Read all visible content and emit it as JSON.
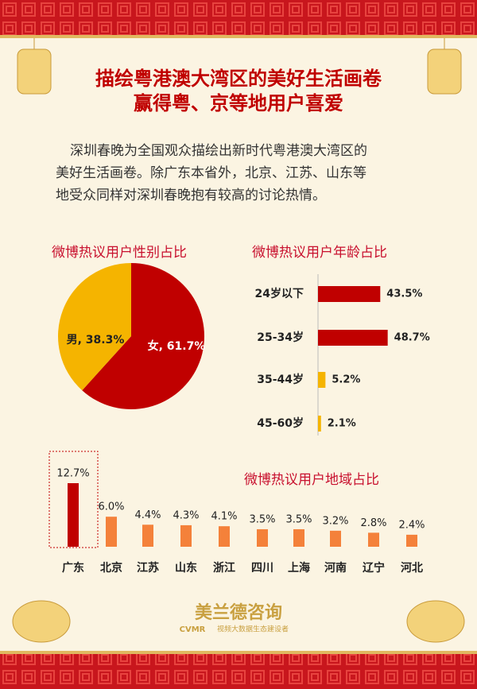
{
  "header": {
    "title_lines": [
      "描绘粤港澳大湾区的美好生活画卷",
      "赢得粤、京等地用户喜爱"
    ],
    "paragraph_lines": [
      "深圳春晚为全国观众描绘出新时代粤港澳大湾区的",
      "美好生活画卷。除广东本省外，北京、江苏、山东等",
      "地受众同样对深圳春晚抱有较高的讨论热情。"
    ]
  },
  "chart_data": [
    {
      "type": "pie",
      "title": "微博热议用户性别占比",
      "values": [
        61.7,
        38.3
      ],
      "value_labels": [
        "女, 61.7%",
        "男, 38.3%"
      ],
      "colors": [
        "#c00000",
        "#f5b400"
      ]
    },
    {
      "type": "hbar",
      "title": "微博热议用户年龄占比",
      "categories": [
        "24岁以下",
        "25-34岁",
        "35-44岁",
        "45-60岁"
      ],
      "values": [
        43.5,
        48.7,
        5.2,
        2.1
      ],
      "value_labels": [
        "43.5%",
        "48.7%",
        "5.2%",
        "2.1%"
      ],
      "colors": [
        "#c00000",
        "#c00000",
        "#f5b400",
        "#f5b400"
      ]
    },
    {
      "type": "bar",
      "title": "微博热议用户地域占比",
      "categories": [
        "广东",
        "北京",
        "江苏",
        "山东",
        "浙江",
        "四川",
        "上海",
        "河南",
        "辽宁",
        "河北"
      ],
      "values": [
        12.7,
        6.0,
        4.4,
        4.3,
        4.1,
        3.5,
        3.5,
        3.2,
        2.8,
        2.4
      ],
      "value_labels": [
        "12.7%",
        "6.0%",
        "4.4%",
        "4.3%",
        "4.1%",
        "3.5%",
        "3.5%",
        "3.2%",
        "2.8%",
        "2.4%"
      ],
      "colors": [
        "#c00000",
        "#f4813a",
        "#f4813a",
        "#f4813a",
        "#f4813a",
        "#f4813a",
        "#f4813a",
        "#f4813a",
        "#f4813a",
        "#f4813a"
      ]
    }
  ],
  "footer": {
    "brand": "美兰德咨询",
    "logo": "CVMR",
    "tagline": "视频大数据生态建设者"
  }
}
